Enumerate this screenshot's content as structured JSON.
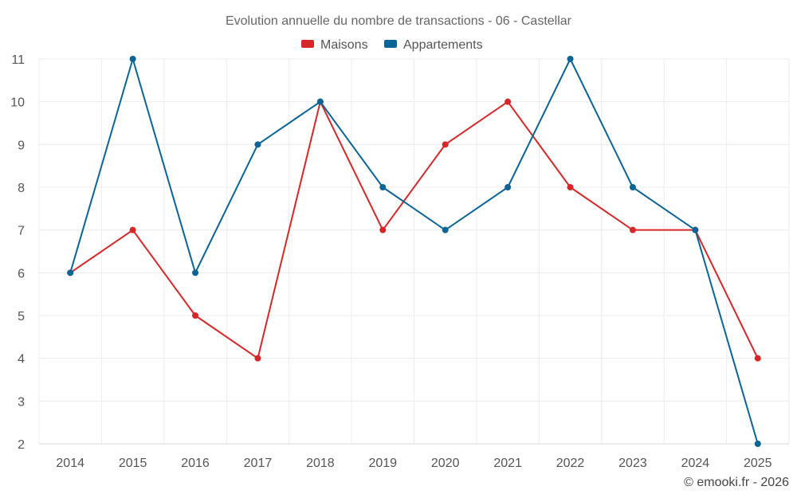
{
  "chart_data": {
    "type": "line",
    "title": "Evolution annuelle du nombre de transactions - 06 - Castellar",
    "categories": [
      "2014",
      "2015",
      "2016",
      "2017",
      "2018",
      "2019",
      "2020",
      "2021",
      "2022",
      "2023",
      "2024",
      "2025"
    ],
    "series": [
      {
        "name": "Maisons",
        "color": "#d62728",
        "values": [
          6,
          7,
          5,
          4,
          10,
          7,
          9,
          10,
          8,
          7,
          7,
          4
        ]
      },
      {
        "name": "Appartements",
        "color": "#0a6496",
        "values": [
          6,
          11,
          6,
          9,
          10,
          8,
          7,
          8,
          11,
          8,
          7,
          2
        ]
      }
    ],
    "ylim": [
      2,
      11
    ],
    "yticks": [
      2,
      3,
      4,
      5,
      6,
      7,
      8,
      9,
      10,
      11
    ],
    "grid": true,
    "legend": "top-center",
    "xlabel": "",
    "ylabel": ""
  },
  "credit": "© emooki.fr - 2026"
}
